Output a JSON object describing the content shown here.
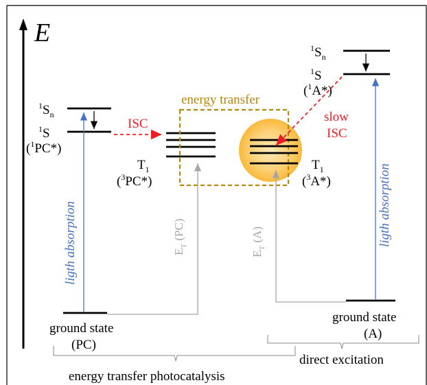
{
  "axis": {
    "label": "E"
  },
  "photocatalyst": {
    "singlet_n": {
      "main": "S",
      "sup": "1",
      "sub": "n"
    },
    "singlet": {
      "main": "S",
      "sup": "1"
    },
    "singlet_paren": {
      "open": "(",
      "sup": "1",
      "main": "PC*)"
    },
    "triplet": {
      "main": "T",
      "sub": "1"
    },
    "triplet_paren": {
      "open": "(",
      "sup": "3",
      "main": "PC*)"
    },
    "absorption_label": "ligth absorption",
    "ground_state": "ground state",
    "ground_state_paren": "(PC)",
    "isc_label": "ISC",
    "et_label": {
      "main": "E",
      "sub": "T",
      "rest": " (PC)"
    }
  },
  "energy_transfer_box_label": "energy transfer",
  "acceptor": {
    "singlet_n": {
      "main": "S",
      "sup": "1",
      "sub": "n"
    },
    "singlet": {
      "main": "S",
      "sup": "1"
    },
    "singlet_paren": {
      "open": "(",
      "sup": "1",
      "main": "A*)"
    },
    "triplet": {
      "main": "T",
      "sub": "1"
    },
    "triplet_paren": {
      "open": "(",
      "sup": "3",
      "main": "A*)"
    },
    "absorption_label": "ligth absorption",
    "ground_state": "ground state",
    "ground_state_paren": "(A)",
    "isc_label_1": "slow",
    "isc_label_2": "ISC",
    "et_label": {
      "main": "E",
      "sub": "T",
      "rest": " (A)"
    }
  },
  "brackets": {
    "left_label": "energy transfer photocatalysis",
    "right_label": "direct excitation"
  },
  "colors": {
    "black": "#000000",
    "blue": "#4472c4",
    "red": "#ee1c24",
    "gold": "#b8860b",
    "grey": "#a6a6a6",
    "glow": "#fbbf47"
  }
}
